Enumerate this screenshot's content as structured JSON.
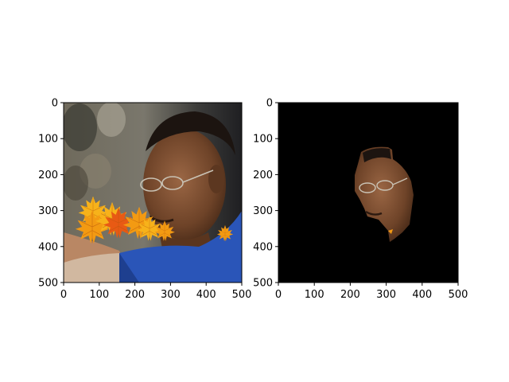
{
  "figure": {
    "background": "#ffffff",
    "axis_color": "#000000"
  },
  "chart_data": [
    {
      "type": "image",
      "content": "photo of a man wearing glasses and a blue shirt, with orange and yellow autumn maple leaves overlaid across the lower face",
      "xlim": [
        0,
        500
      ],
      "ylim": [
        500,
        0
      ],
      "xticks": [
        0,
        100,
        200,
        300,
        400,
        500
      ],
      "yticks": [
        0,
        100,
        200,
        300,
        400,
        500
      ],
      "leaf_colors": [
        "#f7b21a",
        "#e85a14",
        "#f39a12"
      ],
      "shirt_color": "#2a55b8"
    },
    {
      "type": "image",
      "content": "segmentation mask output: only the face region of the man is kept, everything else is black",
      "xlim": [
        0,
        500
      ],
      "ylim": [
        500,
        0
      ],
      "xticks": [
        0,
        100,
        200,
        300,
        400,
        500
      ],
      "yticks": [
        0,
        100,
        200,
        300,
        400,
        500
      ],
      "background_color": "#000000",
      "region_x_range": [
        210,
        375
      ],
      "region_y_range": [
        120,
        385
      ]
    }
  ]
}
